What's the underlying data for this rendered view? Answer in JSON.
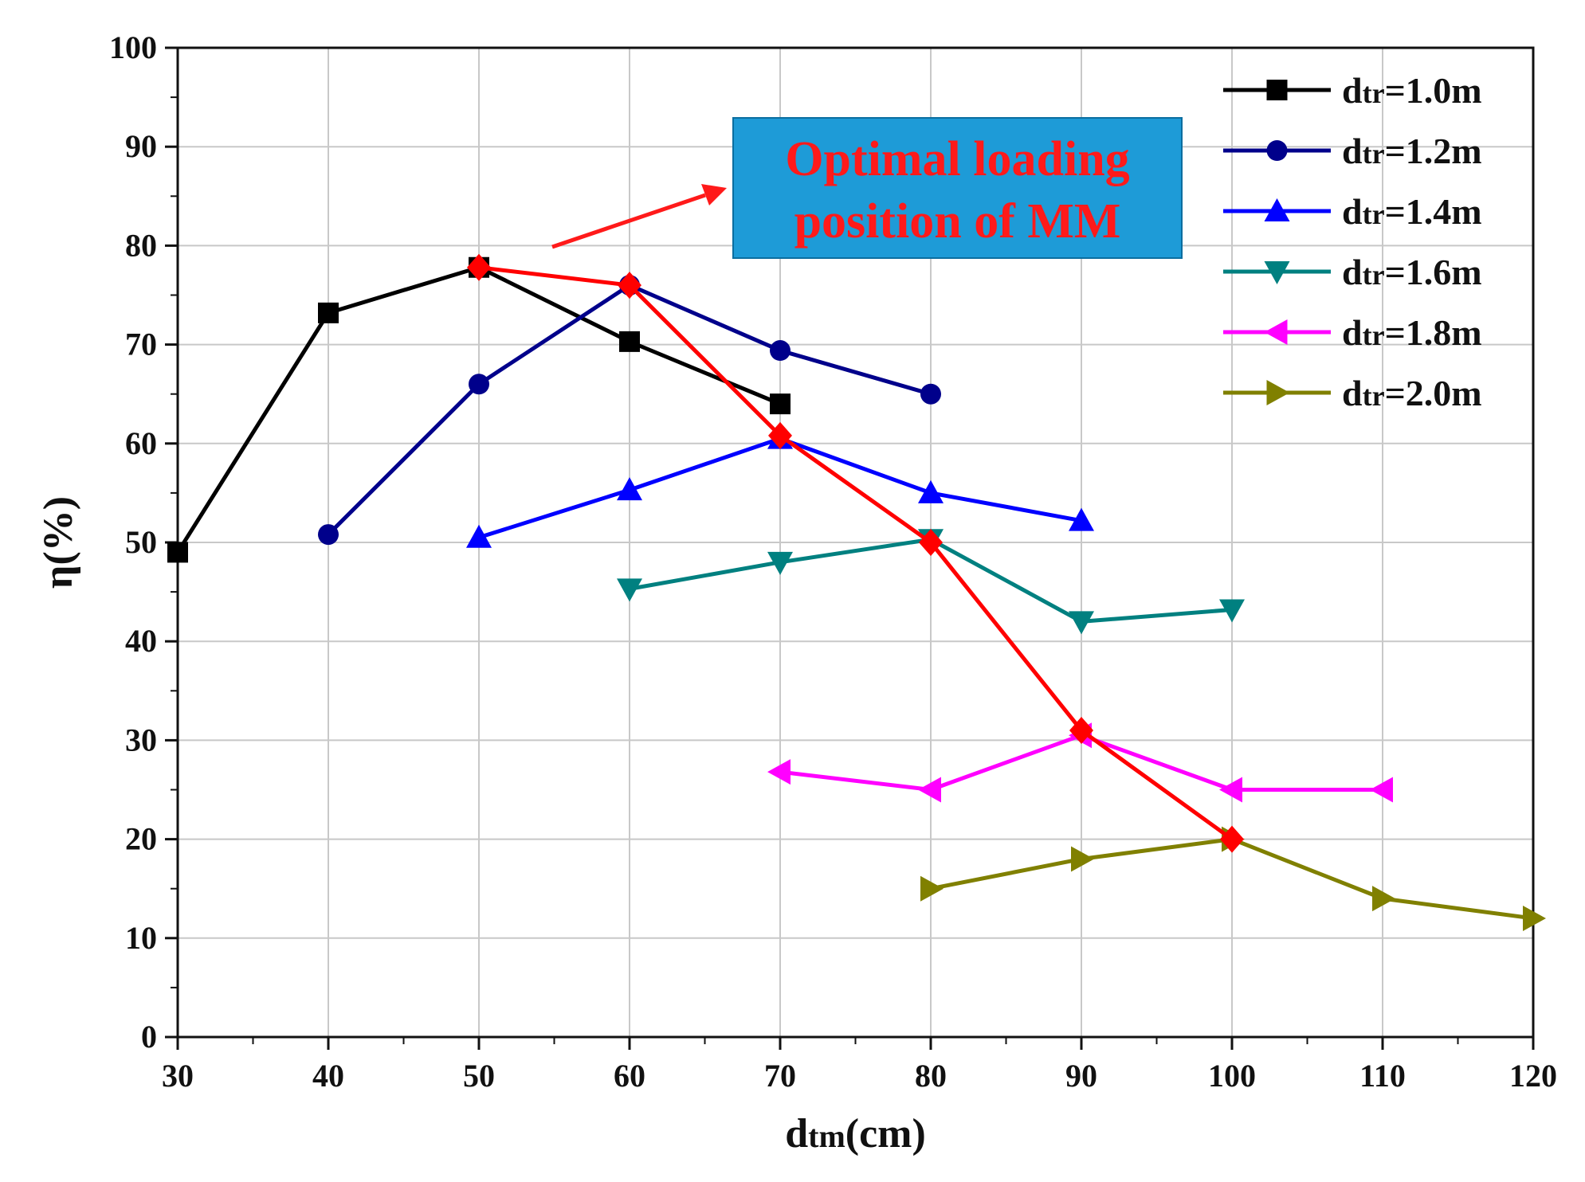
{
  "chart_data": {
    "type": "line",
    "title": "",
    "xlabel": "d tm(cm)",
    "xlabel_main": "d",
    "xlabel_sub": "tm",
    "xlabel_unit": "(cm)",
    "ylabel": "η(%)",
    "xlim": [
      30,
      120
    ],
    "ylim": [
      0,
      100
    ],
    "xticks": [
      30,
      40,
      50,
      60,
      70,
      80,
      90,
      100,
      110,
      120
    ],
    "yticks": [
      0,
      10,
      20,
      30,
      40,
      50,
      60,
      70,
      80,
      90,
      100
    ],
    "grid": true,
    "legend_position": "top-right",
    "series": [
      {
        "name": "dtr=1.0m",
        "label_main": "d",
        "label_sub": "tr",
        "label_rest": "=1.0m",
        "color": "#000000",
        "marker": "square",
        "x": [
          30,
          40,
          50,
          60,
          70
        ],
        "y": [
          49,
          73.2,
          77.8,
          70.3,
          64
        ]
      },
      {
        "name": "dtr=1.2m",
        "label_main": "d",
        "label_sub": "tr",
        "label_rest": "=1.2m",
        "color": "#00008b",
        "marker": "circle",
        "x": [
          40,
          50,
          60,
          70,
          80
        ],
        "y": [
          50.8,
          66,
          76,
          69.4,
          65
        ]
      },
      {
        "name": "dtr=1.4m",
        "label_main": "d",
        "label_sub": "tr",
        "label_rest": "=1.4m",
        "color": "#0000ff",
        "marker": "triangle-up",
        "x": [
          50,
          60,
          70,
          80,
          90
        ],
        "y": [
          50.5,
          55.3,
          60.5,
          55,
          52.2
        ]
      },
      {
        "name": "dtr=1.6m",
        "label_main": "d",
        "label_sub": "tr",
        "label_rest": "=1.6m",
        "color": "#008080",
        "marker": "triangle-down",
        "x": [
          60,
          70,
          80,
          90,
          100
        ],
        "y": [
          45.3,
          48,
          50.3,
          42,
          43.2
        ]
      },
      {
        "name": "dtr=1.8m",
        "label_main": "d",
        "label_sub": "tr",
        "label_rest": "=1.8m",
        "color": "#ff00ff",
        "marker": "triangle-left",
        "x": [
          70,
          80,
          90,
          100,
          110
        ],
        "y": [
          26.8,
          25,
          30.5,
          25,
          25
        ]
      },
      {
        "name": "dtr=2.0m",
        "label_main": "d",
        "label_sub": "tr",
        "label_rest": "=2.0m",
        "color": "#808000",
        "marker": "triangle-right",
        "x": [
          80,
          90,
          100,
          110,
          120
        ],
        "y": [
          15,
          18,
          20,
          14,
          12
        ]
      }
    ],
    "optimal_path": {
      "name": "Optimal loading position of MM",
      "color": "#ff0000",
      "marker": "diamond",
      "x": [
        50,
        60,
        70,
        80,
        90,
        100
      ],
      "y": [
        77.8,
        76,
        60.8,
        50,
        31,
        20
      ]
    },
    "annotation": {
      "lines": [
        "Optimal loading",
        "position of MM"
      ],
      "box_color": "#1e9bd7",
      "text_color": "#ff1a1a",
      "arrow_color": "#ff1a1a"
    }
  }
}
